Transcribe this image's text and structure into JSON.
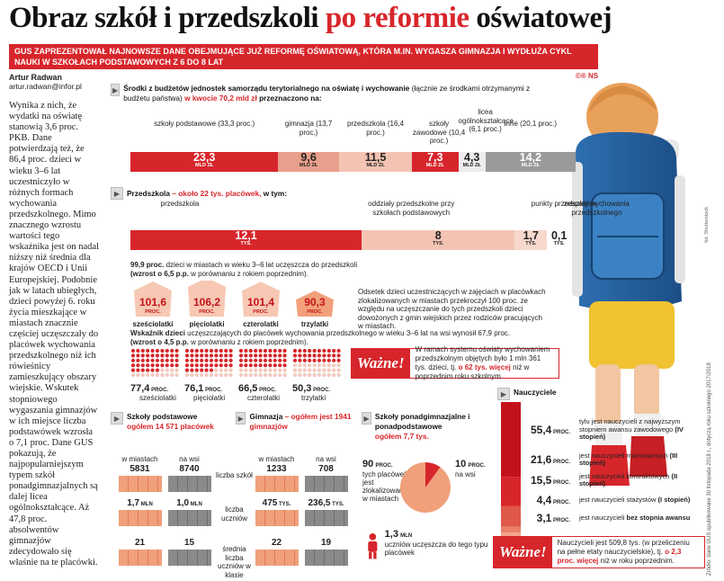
{
  "header": {
    "title_part1": "Obraz szkół i przedszkoli ",
    "title_part2": "po reformie",
    "title_part3": " oświatowej",
    "lead": "GUS zaprezentował najnowsze dane obejmujące już reformę oświatową, która m.in. wygasza gimnazja i wydłuża cykl nauki w szkołach podstawowych z 6 do 8 lat",
    "logo": "©® NS"
  },
  "author": {
    "name": "Artur Radwan",
    "email": "artur.radwan@infor.pl"
  },
  "article": "Wynika z nich, że wydatki na oświatę stanowią 3,6 proc. PKB. Dane potwierdzają też, że 86,4 proc. dzieci w wieku 3–6 lat uczestniczyło w różnych formach wychowania przedszkolnego. Mimo znacznego wzrostu wartości tego wskaźnika jest on nadal niższy niż średnia dla krajów OECD i Unii Europejskiej. Podobnie jak w latach ubiegłych, dzieci powyżej 6. roku życia mieszkające w miastach znacznie częściej uczęszczały do placówek wychowania przedszkolnego niż ich rówieśnicy zamieszkujący obszary wiejskie. Wskutek stopniowego wygaszania gimnazjów w ich miejsce liczba podstawówek wzrosła o 7,1 proc. Dane GUS pokazują, że najpopularniejszym typem szkół ponadgimnazjalnych są dalej licea ogólnokształcące. Aż 47,8 proc. absolwentów gimnazjów zdecydowało się właśnie na te placówki.",
  "side_note": "Źródło: dane GUS opublikowane 30 listopada 2018 r., dotyczą roku szkolnego 2017/2018",
  "photo_credit": "fot. Shutterstock",
  "budget": {
    "title": "Środki z budżetów jednostek samorządu terytorialnego na oświatę i wychowanie",
    "title_note": "(łącznie ze środkami otrzymanymi z budżetu państwa)",
    "title_amount": "w kwocie 70,2 mld zł",
    "title_end": "przeznaczono na:",
    "unit": "MLD ZŁ"
  },
  "kinder": {
    "title": "Przedszkola",
    "title_red": " – około 22 tys. placówek,",
    "title_end": " w tym:",
    "unit": "TYS."
  },
  "attendance": {
    "line1_bold": "99,9 proc.",
    "line1": " dzieci w miastach w wieku 3–6 lat uczęszcza do przedszkoli",
    "line2_bold": "(wzrost o 6,5 p.p.",
    "line2": " w porównaniu z rokiem poprzednim).",
    "unit": "PROC.",
    "items": [
      {
        "value": "101,6",
        "label": "sześciolatki"
      },
      {
        "value": "106,2",
        "label": "pięciolatki"
      },
      {
        "value": "101,4",
        "label": "czterolatki"
      },
      {
        "value": "90,3",
        "label": "trzylatki"
      }
    ],
    "note": "Odsetek dzieci uczestniczących w zajęciach w placówkach zlokalizowanych w miastach przekroczył 100 proc. ze względu na uczęszczanie do tych przedszkoli dzieci dowożonych z gmin wiejskich przez rodziców pracujących w miastach."
  },
  "index": {
    "line1_bold": "Wskaźnik dzieci",
    "line1": " uczęszczających do placówek wychowania przedszkolnego w wieku 3–6 lat na wsi wynosił 67,9 proc.",
    "line2_bold": "(wzrost o 4,5 p.p.",
    "line2": " w porównaniu z rokiem poprzednim).",
    "unit": "PROC.",
    "items": [
      {
        "value": "77,4",
        "label": "sześciolatki"
      },
      {
        "value": "76,1",
        "label": "pięciolatki"
      },
      {
        "value": "66,5",
        "label": "czterolatki"
      },
      {
        "value": "50,3",
        "label": "trzylatki"
      }
    ]
  },
  "wazne1": {
    "tag": "Ważne!",
    "text1": "W ramach systemu oświaty wychowaniem przedszkolnym objętych było 1 mln 361 tys. dzieci, tj. ",
    "bold": "o 62 tys. więcej",
    "text2": " niż w poprzednim roku szkolnym."
  },
  "schools": {
    "title": "Szkoły podstawowe",
    "total": "ogółem 14 571 placówek",
    "city": "w miastach",
    "village": "na wsi",
    "rows": [
      {
        "city": "5831",
        "village": "8740",
        "label": "liczba szkół"
      },
      {
        "city": "1,7",
        "city_unit": "MLN",
        "village": "1,0",
        "village_unit": "MLN",
        "label": "liczba uczniów"
      },
      {
        "city": "21",
        "village": "15",
        "label": "średnia liczba uczniów w klasie"
      }
    ]
  },
  "gym": {
    "title": "Gimnazja",
    "title_red": " – ogółem jest 1941 gimnazjów",
    "city": "w miastach",
    "village": "na wsi",
    "rows": [
      {
        "city": "1233",
        "village": "708"
      },
      {
        "city": "475",
        "city_unit": "TYS.",
        "village": "236,5",
        "village_unit": "TYS."
      },
      {
        "city": "22",
        "village": "19"
      }
    ]
  },
  "post": {
    "title": "Szkoły ponadgimnazjalne i ponadpodstawowe",
    "total": "ogółem 7,7 tys.",
    "city_pct": "90",
    "city_unit": "PROC.",
    "city_text": "tych placówek jest zlokalizowanych w miastach",
    "village_pct": "10",
    "village_unit": "PROC.",
    "village_text": "na wsi",
    "students": "1,3",
    "students_unit": "MLN",
    "students_text": "uczniów uczęszcza do tego typu placówek"
  },
  "teachers": {
    "title": "Nauczyciele",
    "unit": "PROC.",
    "items": [
      {
        "value": "55,4",
        "text": "tylu jest nauczycieli z najwyższym stopniem awansu zawodowego",
        "bold": "(IV stopień)"
      },
      {
        "value": "21,6",
        "text": "jest nauczycieli mianowanych",
        "bold": "(III stopień)"
      },
      {
        "value": "15,5",
        "text": "jest nauczycieli kontraktowych",
        "bold": "(II stopień)"
      },
      {
        "value": "4,4",
        "text": "jest nauczycieli stażystów",
        "bold": "(I stopień)"
      },
      {
        "value": "3,1",
        "text": "jest nauczycieli",
        "bold": "bez stopnia awansu"
      }
    ]
  },
  "wazne2": {
    "tag": "Ważne!",
    "text1": "Nauczycieli jest 509,8 tys. (w przeliczeniu na pełne etaty nauczycielskie), tj. ",
    "bold": "o 2,3 proc. więcej",
    "text2": " niż w roku poprzednim."
  },
  "chart_data": [
    {
      "type": "bar",
      "title": "Środki z budżetów JST na oświatę i wychowanie (mld zł)",
      "categories": [
        "szkoły podstawowe (33,3 proc.)",
        "gimnazja (13,7 proc.)",
        "przedszkola (16,4 proc.)",
        "szkoły zawodowe (10,4 proc.)",
        "licea ogólnokształcące (6,1 proc.)",
        "inne (20,1 proc.)"
      ],
      "values": [
        23.3,
        9.6,
        11.5,
        7.3,
        4.3,
        14.2
      ],
      "labels": [
        "23,3",
        "9,6",
        "11,5",
        "7,3",
        "4,3",
        "14,2"
      ],
      "colors": [
        "#d7262b",
        "#e8a08c",
        "#f3c4b3",
        "#d7262b",
        "#ededed",
        "#9a9a9a"
      ],
      "text_colors": [
        "#fff",
        "#222",
        "#222",
        "#fff",
        "#222",
        "#fff"
      ],
      "unit": "mld zł"
    },
    {
      "type": "bar",
      "title": "Przedszkola (tys. placówek)",
      "categories": [
        "przedszkola",
        "oddziały przedszkolne przy szkołach podstawowych",
        "punkty przedszkolne",
        "zespoły wychowania przedszkolnego"
      ],
      "values": [
        12.1,
        8,
        1.7,
        0.1
      ],
      "labels": [
        "12,1",
        "8",
        "1,7",
        "0,1"
      ],
      "colors": [
        "#d7262b",
        "#f3c4b3",
        "#f7d8cc",
        "#ffffff"
      ],
      "text_colors": [
        "#fff",
        "#222",
        "#222",
        "#222"
      ],
      "unit": "tys."
    },
    {
      "type": "bar",
      "title": "Dzieci w miastach uczęszczające do przedszkoli (proc.)",
      "categories": [
        "sześciolatki",
        "pięciolatki",
        "czterolatki",
        "trzylatki"
      ],
      "values": [
        101.6,
        106.2,
        101.4,
        90.3
      ]
    },
    {
      "type": "bar",
      "title": "Dzieci na wsi uczęszczające do przedszkoli (proc.)",
      "categories": [
        "sześciolatki",
        "pięciolatki",
        "czterolatki",
        "trzylatki"
      ],
      "values": [
        77.4,
        76.1,
        66.5,
        50.3
      ]
    },
    {
      "type": "pie",
      "title": "Szkoły ponadgimnazjalne i ponadpodstawowe",
      "categories": [
        "w miastach",
        "na wsi"
      ],
      "values": [
        90,
        10
      ]
    },
    {
      "type": "bar",
      "title": "Nauczyciele wg stopnia awansu (proc.)",
      "categories": [
        "IV stopień",
        "III stopień",
        "II stopień",
        "I stopień",
        "bez stopnia awansu"
      ],
      "values": [
        55.4,
        21.6,
        15.5,
        4.4,
        3.1
      ]
    }
  ]
}
